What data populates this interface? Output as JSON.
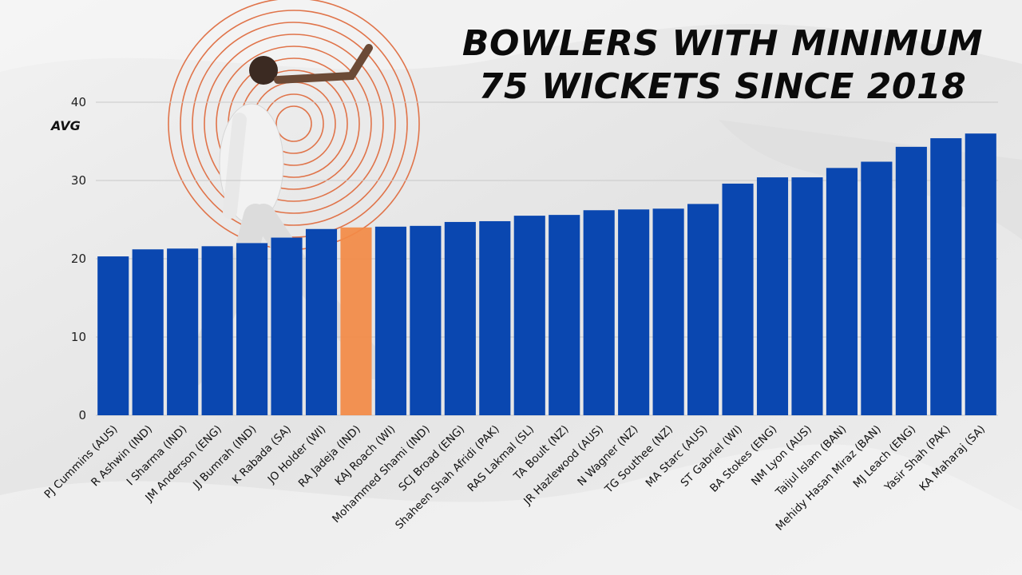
{
  "chart_data": {
    "type": "bar",
    "title": "BOWLERS WITH  MINIMUM 75 WICKETS SINCE 2018",
    "ylabel": "AVG",
    "xlabel": "",
    "ylim": [
      0,
      40
    ],
    "yticks": [
      0,
      10,
      20,
      30,
      40
    ],
    "grid": true,
    "bar_color": "#0a47b0",
    "highlight_color": "#f38a45",
    "highlight_category": "RA Jadeja (IND)",
    "categories": [
      "PJ Cummins (AUS)",
      "R Ashwin (IND)",
      "I Sharma (IND)",
      "JM Anderson (ENG)",
      "JJ Bumrah (IND)",
      "K Rabada (SA)",
      "JO Holder (WI)",
      "RA Jadeja (IND)",
      "KAJ Roach (WI)",
      "Mohammed Shami (IND)",
      "SCJ Broad (ENG)",
      "Shaheen Shah Afridi (PAK)",
      "RAS Lakmal (SL)",
      "TA Boult (NZ)",
      "JR Hazlewood (AUS)",
      "N Wagner (NZ)",
      "TG Southee (NZ)",
      "MA Starc (AUS)",
      "ST Gabriel (WI)",
      "BA Stokes (ENG)",
      "NM Lyon (AUS)",
      "Taijul Islam (BAN)",
      "Mehidy Hasan Miraz (BAN)",
      "MJ Leach (ENG)",
      "Yasir Shah (PAK)",
      "KA Maharaj (SA)"
    ],
    "values": [
      20.3,
      21.2,
      21.3,
      21.6,
      22.0,
      22.7,
      23.8,
      24.0,
      24.1,
      24.2,
      24.7,
      24.8,
      25.5,
      25.6,
      26.2,
      26.3,
      26.4,
      27.0,
      29.6,
      30.4,
      30.4,
      31.6,
      32.4,
      34.3,
      35.4,
      36.0
    ]
  }
}
